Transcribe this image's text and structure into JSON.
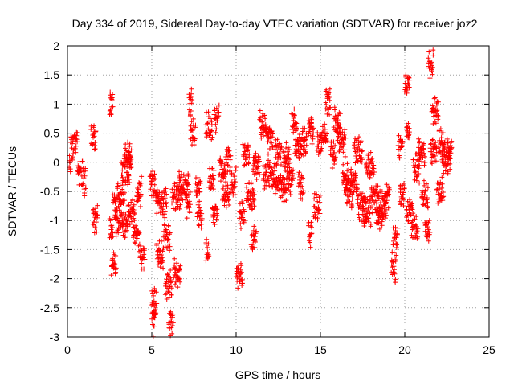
{
  "chart_data": {
    "type": "scatter",
    "title": "Day 334 of 2019, Sidereal Day-to-day VTEC variation (SDTVAR) for receiver joz2",
    "xlabel": "GPS time / hours",
    "ylabel": "SDTVAR / TECUs",
    "xlim": [
      0,
      25
    ],
    "ylim": [
      -3,
      2
    ],
    "xticks": [
      "0",
      "5",
      "10",
      "15",
      "20",
      "25"
    ],
    "yticks": [
      "-3",
      "-2.5",
      "-2",
      "-1.5",
      "-1",
      "-0.5",
      "0",
      "0.5",
      "1",
      "1.5",
      "2"
    ],
    "grid": true,
    "marker": "plus",
    "color": "#ff0000",
    "segments": [
      [
        0.1,
        0.2,
        -0.1
      ],
      [
        0.2,
        0.4,
        0.25
      ],
      [
        0.4,
        0.6,
        0.35
      ],
      [
        0.6,
        0.9,
        -0.2
      ],
      [
        0.9,
        1.1,
        -0.35
      ],
      [
        1.4,
        1.7,
        0.4
      ],
      [
        1.5,
        1.8,
        -0.95
      ],
      [
        2.5,
        2.7,
        0.95
      ],
      [
        2.5,
        2.7,
        -1.2
      ],
      [
        2.6,
        2.9,
        -1.75
      ],
      [
        2.7,
        3.4,
        -0.6
      ],
      [
        2.8,
        3.6,
        -1.05
      ],
      [
        3.2,
        3.8,
        -0.15
      ],
      [
        3.4,
        3.8,
        0.1
      ],
      [
        3.6,
        4.0,
        -0.8
      ],
      [
        3.9,
        4.3,
        -1.3
      ],
      [
        4.1,
        4.4,
        -0.5
      ],
      [
        4.3,
        4.6,
        -1.6
      ],
      [
        4.9,
        5.3,
        -0.4
      ],
      [
        5.0,
        5.3,
        -2.4
      ],
      [
        5.0,
        5.2,
        -2.75
      ],
      [
        5.3,
        5.7,
        -1.6
      ],
      [
        5.3,
        5.9,
        -0.7
      ],
      [
        5.7,
        6.1,
        -1.3
      ],
      [
        5.8,
        6.2,
        -2.1
      ],
      [
        6.0,
        6.3,
        -2.75
      ],
      [
        6.2,
        6.7,
        -0.6
      ],
      [
        6.3,
        6.7,
        -1.9
      ],
      [
        6.6,
        7.2,
        -0.4
      ],
      [
        7.0,
        7.3,
        -0.75
      ],
      [
        7.2,
        7.4,
        1.0
      ],
      [
        7.3,
        7.6,
        0.5
      ],
      [
        7.6,
        7.9,
        -0.45
      ],
      [
        7.7,
        8.0,
        -0.9
      ],
      [
        8.2,
        8.4,
        -1.55
      ],
      [
        8.2,
        8.6,
        0.6
      ],
      [
        8.4,
        8.7,
        -0.3
      ],
      [
        8.6,
        8.9,
        -0.9
      ],
      [
        8.7,
        9.0,
        0.75
      ],
      [
        9.0,
        9.4,
        -0.1
      ],
      [
        9.2,
        9.6,
        -0.55
      ],
      [
        9.4,
        9.7,
        0.05
      ],
      [
        9.7,
        10.0,
        -0.35
      ],
      [
        10.0,
        10.4,
        -1.9
      ],
      [
        10.2,
        10.5,
        -0.9
      ],
      [
        10.4,
        10.8,
        0.15
      ],
      [
        10.6,
        11.1,
        -0.6
      ],
      [
        10.9,
        11.2,
        -1.35
      ],
      [
        11.0,
        11.4,
        -0.05
      ],
      [
        11.4,
        11.8,
        0.65
      ],
      [
        11.6,
        12.1,
        -0.2
      ],
      [
        11.8,
        12.2,
        0.4
      ],
      [
        12.1,
        12.6,
        -0.3
      ],
      [
        12.3,
        12.7,
        0.15
      ],
      [
        12.6,
        13.0,
        -0.45
      ],
      [
        12.8,
        13.2,
        0.1
      ],
      [
        13.0,
        13.4,
        -0.3
      ],
      [
        13.3,
        13.6,
        0.7
      ],
      [
        13.5,
        13.9,
        0.25
      ],
      [
        13.7,
        14.0,
        -0.4
      ],
      [
        13.9,
        14.2,
        0.35
      ],
      [
        14.3,
        14.5,
        -1.25
      ],
      [
        14.3,
        14.6,
        0.55
      ],
      [
        14.6,
        15.0,
        -0.75
      ],
      [
        14.8,
        15.1,
        0.35
      ],
      [
        15.1,
        15.4,
        0.45
      ],
      [
        15.3,
        15.6,
        1.05
      ],
      [
        15.6,
        15.9,
        0.15
      ],
      [
        15.8,
        16.2,
        0.7
      ],
      [
        16.0,
        16.5,
        0.35
      ],
      [
        16.3,
        16.7,
        -0.25
      ],
      [
        16.5,
        16.9,
        -0.55
      ],
      [
        16.8,
        17.2,
        -0.35
      ],
      [
        17.0,
        17.5,
        0.2
      ],
      [
        17.2,
        17.7,
        -0.75
      ],
      [
        17.5,
        18.0,
        -0.85
      ],
      [
        17.7,
        18.2,
        -0.05
      ],
      [
        18.0,
        18.5,
        -0.65
      ],
      [
        18.3,
        18.7,
        -0.95
      ],
      [
        18.5,
        18.9,
        -0.75
      ],
      [
        18.8,
        19.1,
        -0.55
      ],
      [
        19.2,
        19.5,
        -1.8
      ],
      [
        19.3,
        19.6,
        -1.35
      ],
      [
        19.6,
        19.9,
        0.25
      ],
      [
        19.7,
        20.0,
        -0.55
      ],
      [
        20.0,
        20.3,
        1.35
      ],
      [
        20.1,
        20.3,
        0.55
      ],
      [
        20.1,
        20.5,
        -0.8
      ],
      [
        20.4,
        20.8,
        -1.1
      ],
      [
        20.5,
        20.9,
        -0.1
      ],
      [
        20.8,
        21.2,
        0.2
      ],
      [
        21.0,
        21.4,
        -0.55
      ],
      [
        21.2,
        21.5,
        -1.15
      ],
      [
        21.4,
        21.7,
        1.7
      ],
      [
        21.5,
        21.9,
        0.2
      ],
      [
        21.6,
        22.0,
        0.9
      ],
      [
        21.9,
        22.3,
        -0.5
      ],
      [
        22.0,
        22.4,
        0.35
      ],
      [
        22.2,
        22.7,
        0.05
      ],
      [
        22.5,
        22.8,
        0.2
      ]
    ]
  }
}
